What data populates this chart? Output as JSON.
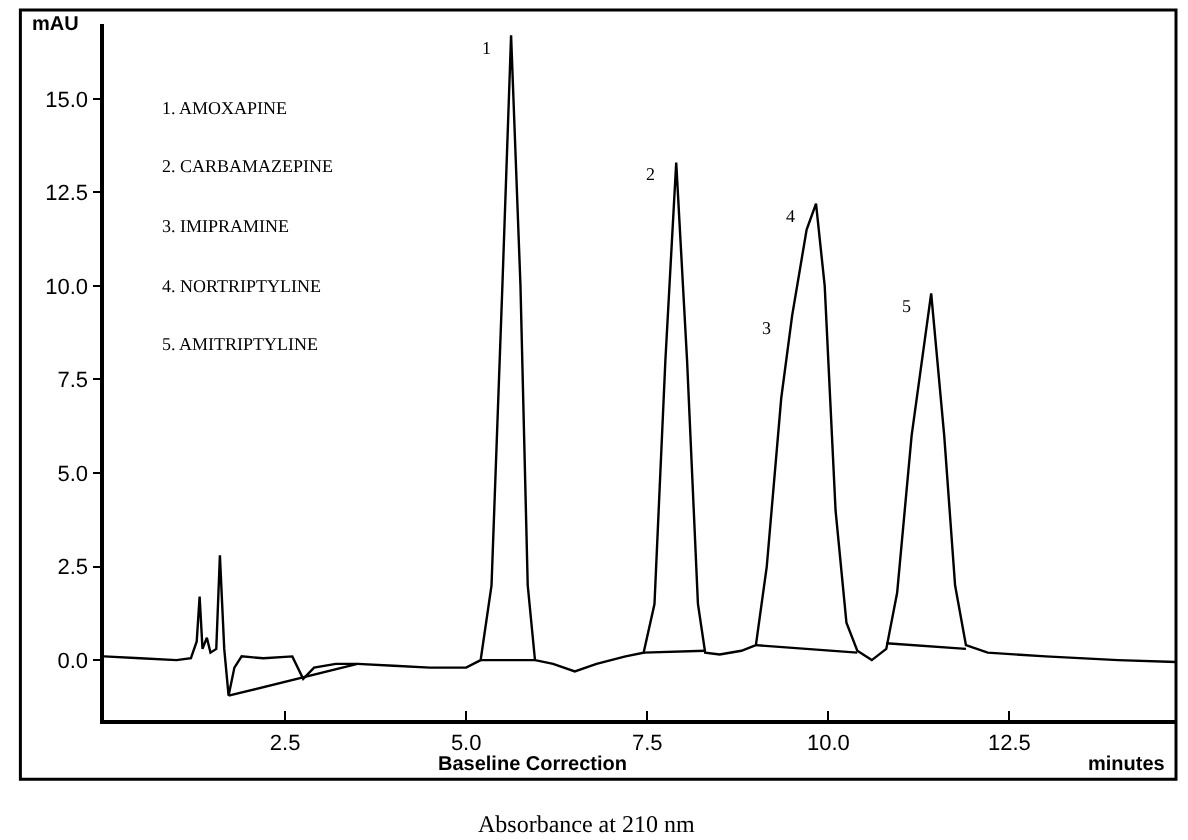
{
  "chart_data": {
    "type": "line",
    "xlabel": "minutes",
    "ylabel": "mAU",
    "x": [
      0,
      0.5,
      1.0,
      1.2,
      1.28,
      1.32,
      1.36,
      1.42,
      1.47,
      1.55,
      1.6,
      1.66,
      1.72,
      1.8,
      1.9,
      2.2,
      2.6,
      2.75,
      2.9,
      3.2,
      3.5,
      4.0,
      4.5,
      5.0,
      5.2,
      5.35,
      5.5,
      5.62,
      5.75,
      5.85,
      5.95,
      6.2,
      6.5,
      6.8,
      7.2,
      7.45,
      7.6,
      7.75,
      7.9,
      8.05,
      8.2,
      8.3,
      8.5,
      8.8,
      9.0,
      9.15,
      9.35,
      9.5,
      9.7,
      9.83,
      9.95,
      10.1,
      10.25,
      10.4,
      10.6,
      10.8,
      10.95,
      11.15,
      11.42,
      11.6,
      11.75,
      11.9,
      12.2,
      13.0,
      14.0,
      14.8
    ],
    "series": [
      {
        "color": "#000000",
        "values": [
          0.1,
          0.05,
          0.0,
          0.05,
          0.5,
          1.7,
          0.3,
          0.6,
          0.2,
          0.3,
          2.8,
          0.3,
          -0.95,
          -0.2,
          0.1,
          0.05,
          0.1,
          -0.5,
          -0.2,
          -0.1,
          -0.1,
          -0.15,
          -0.2,
          -0.2,
          0.0,
          2.0,
          10.0,
          16.7,
          10.0,
          2.0,
          0.0,
          -0.1,
          -0.3,
          -0.1,
          0.1,
          0.2,
          1.5,
          8.0,
          13.3,
          8.0,
          1.5,
          0.2,
          0.15,
          0.25,
          0.4,
          2.5,
          7.0,
          9.2,
          11.5,
          12.2,
          10.0,
          4.0,
          1.0,
          0.25,
          0.0,
          0.3,
          1.8,
          6.0,
          9.8,
          6.0,
          2.0,
          0.4,
          0.2,
          0.1,
          0.0,
          -0.05
        ]
      },
      {
        "color": "#000000",
        "x": [
          1.72,
          3.5
        ],
        "values": [
          -0.95,
          -0.1
        ]
      },
      {
        "color": "#000000",
        "x": [
          5.2,
          5.95
        ],
        "values": [
          0.0,
          0.0
        ]
      },
      {
        "color": "#000000",
        "x": [
          7.45,
          8.3
        ],
        "values": [
          0.2,
          0.25
        ]
      },
      {
        "color": "#000000",
        "x": [
          9.0,
          10.4
        ],
        "values": [
          0.4,
          0.2
        ]
      },
      {
        "color": "#000000",
        "x": [
          10.8,
          11.9
        ],
        "values": [
          0.45,
          0.3
        ]
      }
    ],
    "xlim": [
      0,
      14.8
    ],
    "ylim": [
      -1.6,
      17
    ],
    "xticks": [
      2.5,
      {
        "value": 5,
        "label": "5.0"
      },
      7.5,
      {
        "value": 10,
        "label": "10.0"
      },
      12.5
    ],
    "yticks": [
      {
        "value": 0,
        "label": "0.0"
      },
      2.5,
      {
        "value": 5,
        "label": "5.0"
      },
      7.5,
      {
        "value": 10,
        "label": "10.0"
      },
      12.5,
      {
        "value": 15,
        "label": "15.0"
      }
    ],
    "marker": "none",
    "line_style": "solid",
    "annotations": [
      {
        "text": "1",
        "x": 5.62,
        "y": 16.7
      },
      {
        "text": "2",
        "x": 7.9,
        "y": 13.3
      },
      {
        "text": "3",
        "x": 9.5,
        "y": 9.2
      },
      {
        "text": "4",
        "x": 9.83,
        "y": 12.2
      },
      {
        "text": "5",
        "x": 11.42,
        "y": 9.8
      },
      "1. AMOXAPINE",
      "2. CARBAMAZEPINE",
      "3. IMIPRAMINE",
      "4. NORTRIPTYLINE",
      "5. AMITRIPTYLINE",
      "Baseline Correction",
      "Absorbance at 210 nm"
    ]
  }
}
